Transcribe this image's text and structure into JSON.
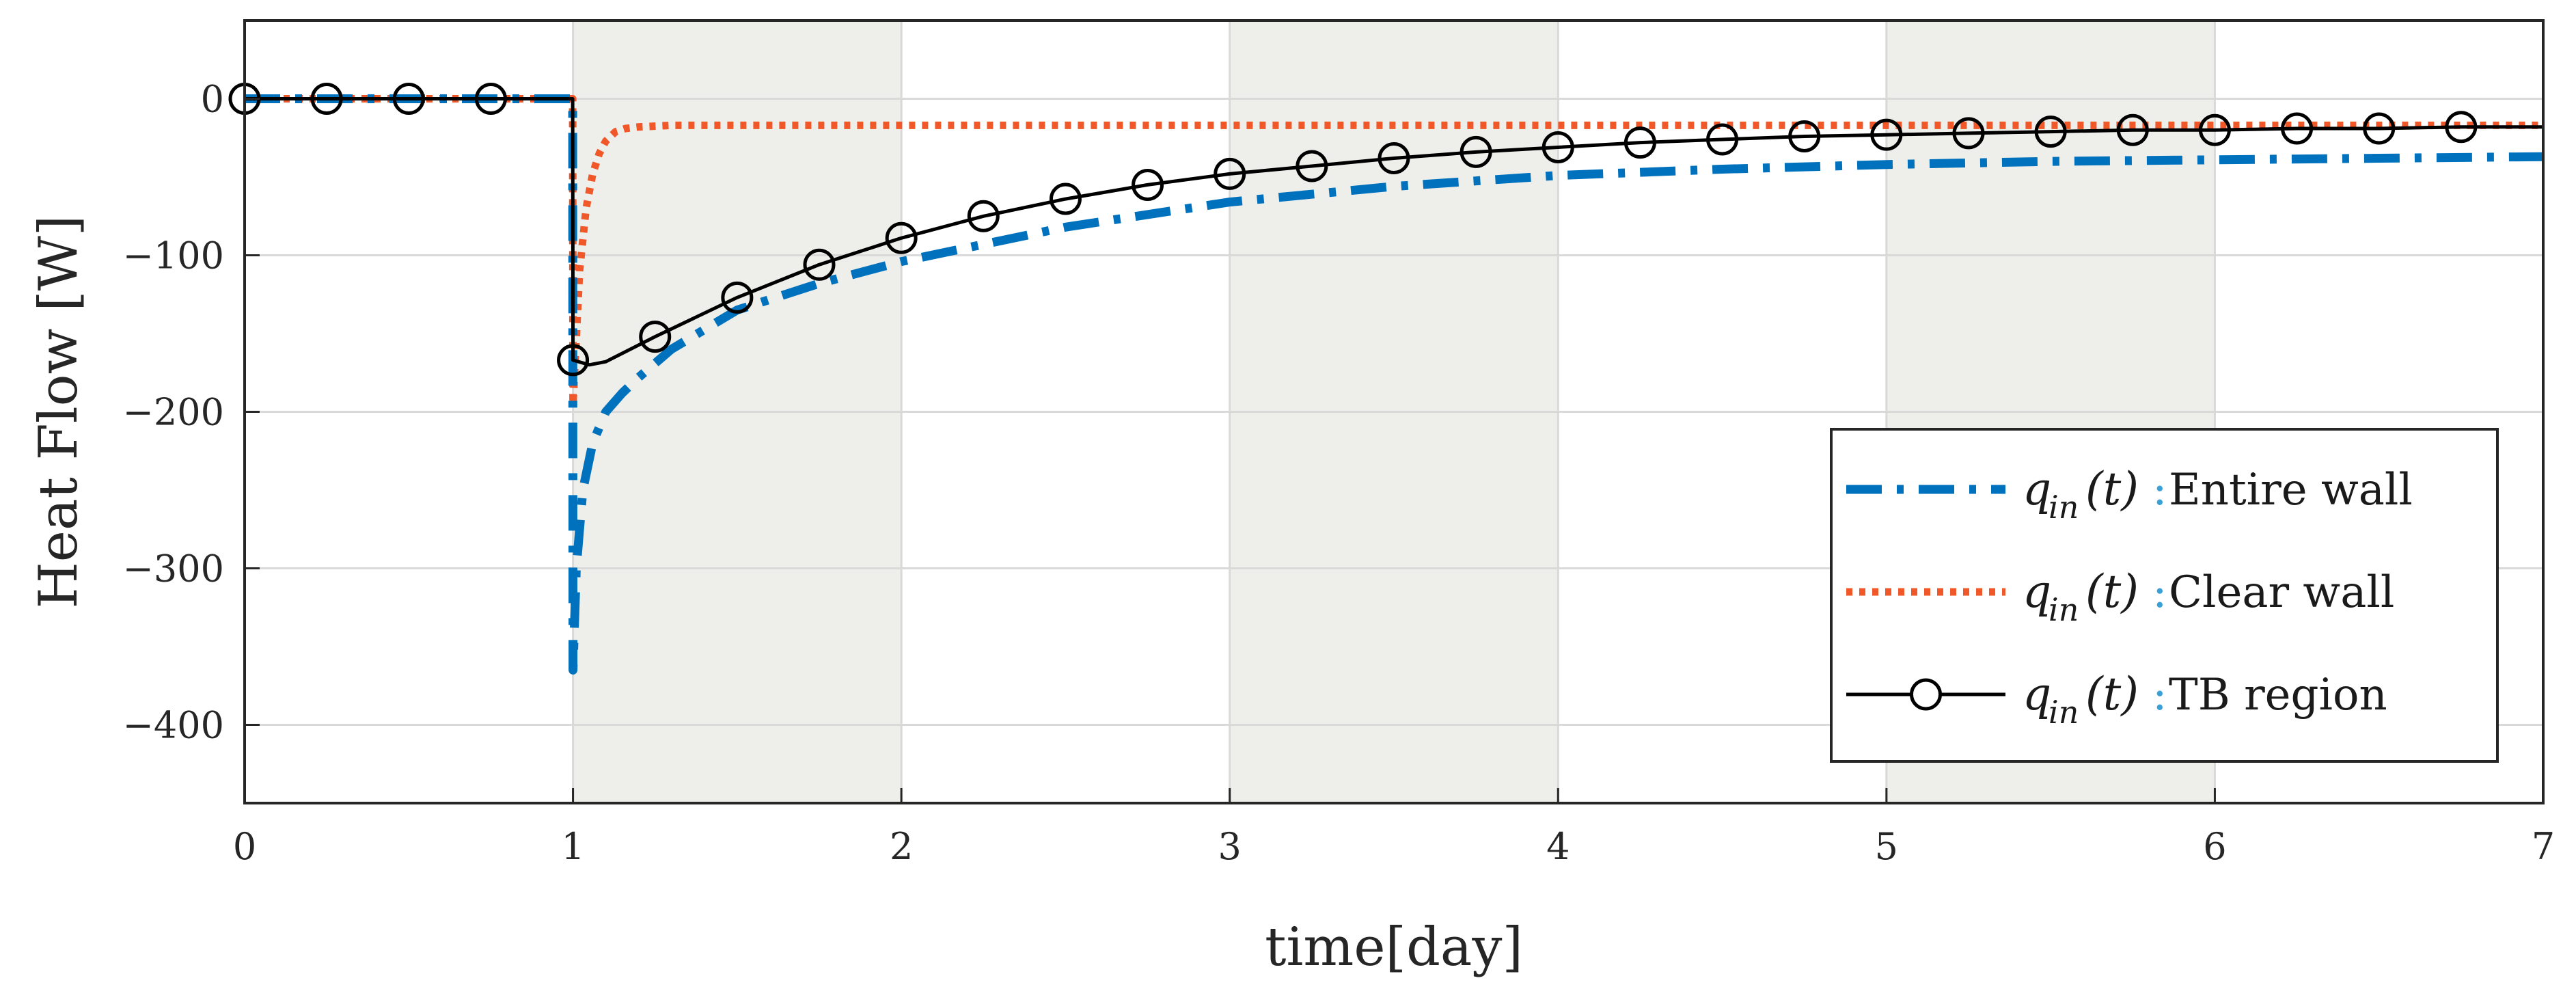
{
  "chart_data": {
    "type": "line",
    "xlabel": "time[day]",
    "ylabel": "Heat Flow [W]",
    "xlim": [
      0,
      7
    ],
    "ylim": [
      -450,
      50
    ],
    "xticks": [
      0,
      1,
      2,
      3,
      4,
      5,
      6,
      7
    ],
    "yticks": [
      0,
      -100,
      -200,
      -300,
      -400
    ],
    "ytick_labels": [
      "0",
      "−100",
      "−200",
      "−300",
      "−400"
    ],
    "grid": true,
    "shaded_x_intervals": [
      [
        1,
        2
      ],
      [
        3,
        4
      ],
      [
        5,
        6
      ]
    ],
    "shade_color": "#eeeeea",
    "legend_position": "lower-right",
    "series": [
      {
        "symbol": "q",
        "subscript": "in",
        "arg": "(t)",
        "name": "Entire wall",
        "color": "#0072bd",
        "style": "dash-dot",
        "x": [
          0,
          0.999,
          1.0,
          1.01,
          1.03,
          1.06,
          1.1,
          1.15,
          1.2,
          1.3,
          1.5,
          1.75,
          2.0,
          2.5,
          3.0,
          3.5,
          4.0,
          4.5,
          5.0,
          5.5,
          6.0,
          6.5,
          7.0
        ],
        "y": [
          0,
          0,
          -365,
          -300,
          -250,
          -220,
          -200,
          -188,
          -178,
          -160,
          -135,
          -118,
          -104,
          -82,
          -66,
          -56,
          -49,
          -45,
          -42,
          -40,
          -39,
          -38,
          -37
        ]
      },
      {
        "symbol": "q",
        "subscript": "in",
        "arg": "(t)",
        "name": "Clear wall",
        "color": "#f0582a",
        "style": "dotted",
        "x": [
          0,
          0.999,
          1.0,
          1.02,
          1.04,
          1.06,
          1.08,
          1.1,
          1.13,
          1.16,
          1.2,
          1.3,
          1.5,
          2.0,
          3.0,
          4.0,
          5.0,
          6.0,
          7.0
        ],
        "y": [
          0,
          0,
          -195,
          -110,
          -70,
          -48,
          -35,
          -27,
          -21,
          -19,
          -18,
          -17,
          -17,
          -17,
          -17,
          -17,
          -17,
          -17,
          -17
        ]
      },
      {
        "symbol": "q",
        "subscript": "in",
        "arg": "(t)",
        "name": "TB region",
        "color": "#000000",
        "style": "solid-circle",
        "x": [
          0,
          0.999,
          1.0,
          1.05,
          1.1,
          1.25,
          1.5,
          1.75,
          2.0,
          2.25,
          2.5,
          2.75,
          3.0,
          3.25,
          3.5,
          3.75,
          4.0,
          4.25,
          4.5,
          4.75,
          5.0,
          5.25,
          5.5,
          5.75,
          6.0,
          6.25,
          6.5,
          6.75,
          7.0
        ],
        "y": [
          0,
          0,
          -167,
          -170,
          -168,
          -152,
          -127,
          -106,
          -89,
          -75,
          -64,
          -55,
          -48,
          -43,
          -38,
          -34,
          -31,
          -28,
          -26,
          -24,
          -23,
          -22,
          -21,
          -20,
          -20,
          -19,
          -19,
          -18,
          -18
        ],
        "markers_x": [
          0,
          0.25,
          0.5,
          0.75,
          1.0,
          1.25,
          1.5,
          1.75,
          2.0,
          2.25,
          2.5,
          2.75,
          3.0,
          3.25,
          3.5,
          3.75,
          4.0,
          4.25,
          4.5,
          4.75,
          5.0,
          5.25,
          5.5,
          5.75,
          6.0,
          6.25,
          6.5,
          6.75
        ],
        "markers_y": [
          0,
          0,
          0,
          0,
          -167,
          -152,
          -127,
          -106,
          -89,
          -75,
          -64,
          -55,
          -48,
          -43,
          -38,
          -34,
          -31,
          -28,
          -26,
          -24,
          -23,
          -22,
          -21,
          -20,
          -20,
          -19,
          -19,
          -18
        ]
      }
    ]
  }
}
